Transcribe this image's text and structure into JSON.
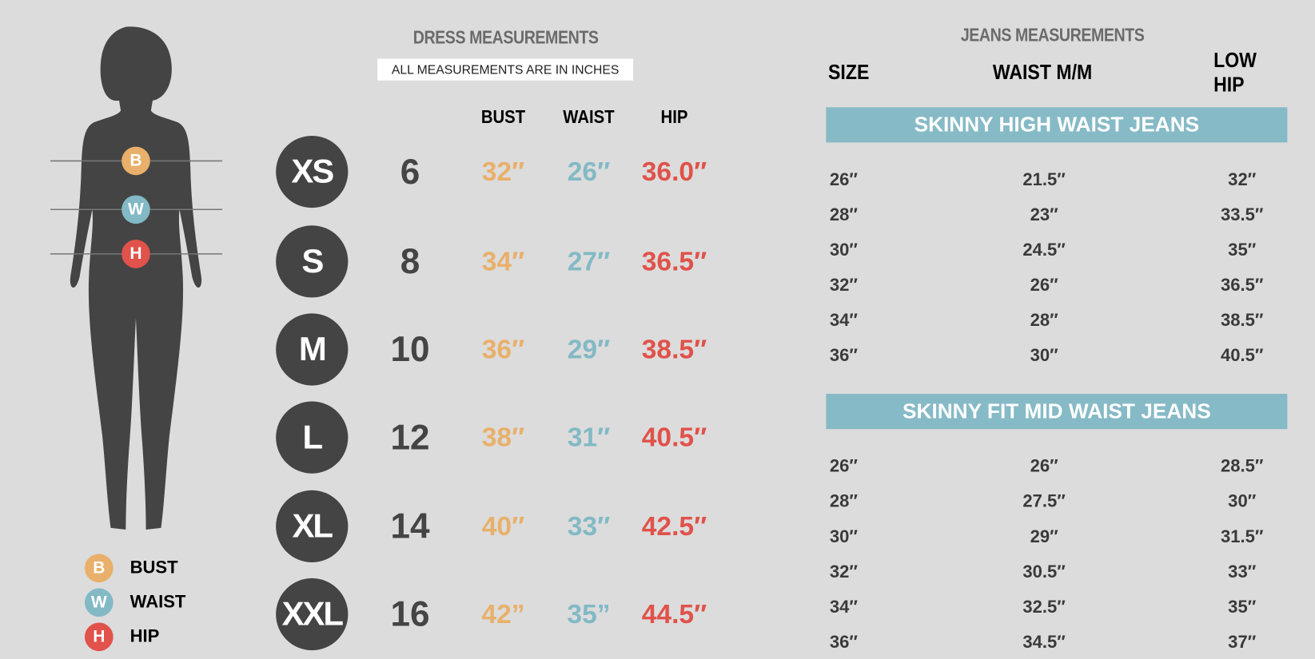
{
  "colors": {
    "bust": "#e8b06a",
    "waist": "#82b9c5",
    "hip": "#e0524a",
    "dark": "#444444",
    "banner": "#86bac6"
  },
  "figure": {
    "icon": "female-silhouette-icon",
    "markers": [
      "B",
      "W",
      "H"
    ]
  },
  "legend": [
    {
      "letter": "B",
      "label": "BUST"
    },
    {
      "letter": "W",
      "label": "WAIST"
    },
    {
      "letter": "H",
      "label": "HIP"
    }
  ],
  "dress": {
    "title": "DRESS MEASUREMENTS",
    "subtitle": "ALL MEASUREMENTS ARE IN INCHES",
    "headers": [
      "BUST",
      "WAIST",
      "HIP"
    ],
    "rows": [
      {
        "size": "XS",
        "num": "6",
        "bust": "32″",
        "waist": "26″",
        "hip": "36.0″"
      },
      {
        "size": "S",
        "num": "8",
        "bust": "34″",
        "waist": "27″",
        "hip": "36.5″"
      },
      {
        "size": "M",
        "num": "10",
        "bust": "36″",
        "waist": "29″",
        "hip": "38.5″"
      },
      {
        "size": "L",
        "num": "12",
        "bust": "38″",
        "waist": "31″",
        "hip": "40.5″"
      },
      {
        "size": "XL",
        "num": "14",
        "bust": "40″",
        "waist": "33″",
        "hip": "42.5″"
      },
      {
        "size": "XXL",
        "num": "16",
        "bust": "42”",
        "waist": "35”",
        "hip": "44.5″"
      }
    ]
  },
  "jeans": {
    "title": "JEANS MEASUREMENTS",
    "headers": [
      "SIZE",
      "WAIST M/M",
      "LOW HIP"
    ],
    "groups": [
      {
        "name": "SKINNY HIGH WAIST JEANS",
        "rows": [
          [
            "26″",
            "21.5″",
            "32″"
          ],
          [
            "28″",
            "23″",
            "33.5″"
          ],
          [
            "30″",
            "24.5″",
            "35″"
          ],
          [
            "32″",
            "26″",
            "36.5″"
          ],
          [
            "34″",
            "28″",
            "38.5″"
          ],
          [
            "36″",
            "30″",
            "40.5″"
          ]
        ]
      },
      {
        "name": "SKINNY FIT MID WAIST JEANS",
        "rows": [
          [
            "26″",
            "26″",
            "28.5″"
          ],
          [
            "28″",
            "27.5″",
            "30″"
          ],
          [
            "30″",
            "29″",
            "31.5″"
          ],
          [
            "32″",
            "30.5″",
            "33″"
          ],
          [
            "34″",
            "32.5″",
            "35″"
          ],
          [
            "36″",
            "34.5″",
            "37″"
          ]
        ]
      }
    ]
  }
}
